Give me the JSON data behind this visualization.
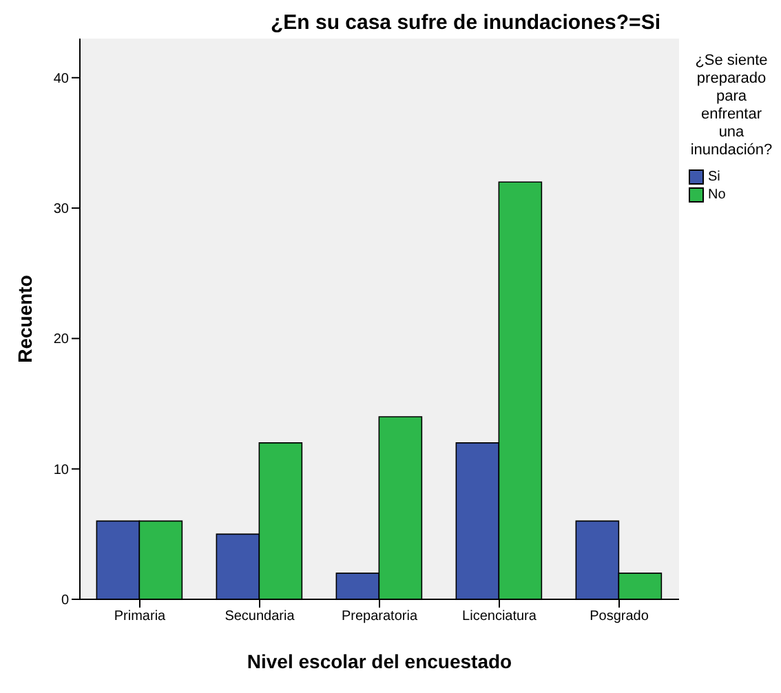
{
  "chart_data": {
    "type": "bar",
    "title": "¿En su casa sufre de inundaciones?=Si",
    "xlabel": "Nivel escolar del encuestado",
    "ylabel": "Recuento",
    "legend_title": "¿Se siente preparado para enfrentar una inundación?",
    "categories": [
      "Primaria",
      "Secundaria",
      "Preparatoria",
      "Licenciatura",
      "Posgrado"
    ],
    "series": [
      {
        "name": "Si",
        "color": "#3e58ac",
        "values": [
          6,
          5,
          2,
          12,
          6
        ]
      },
      {
        "name": "No",
        "color": "#2db84b",
        "values": [
          6,
          12,
          14,
          32,
          2
        ]
      }
    ],
    "ylim": [
      0,
      43
    ],
    "yticks": [
      0,
      10,
      20,
      30,
      40
    ],
    "grid": false,
    "legend": "right"
  }
}
